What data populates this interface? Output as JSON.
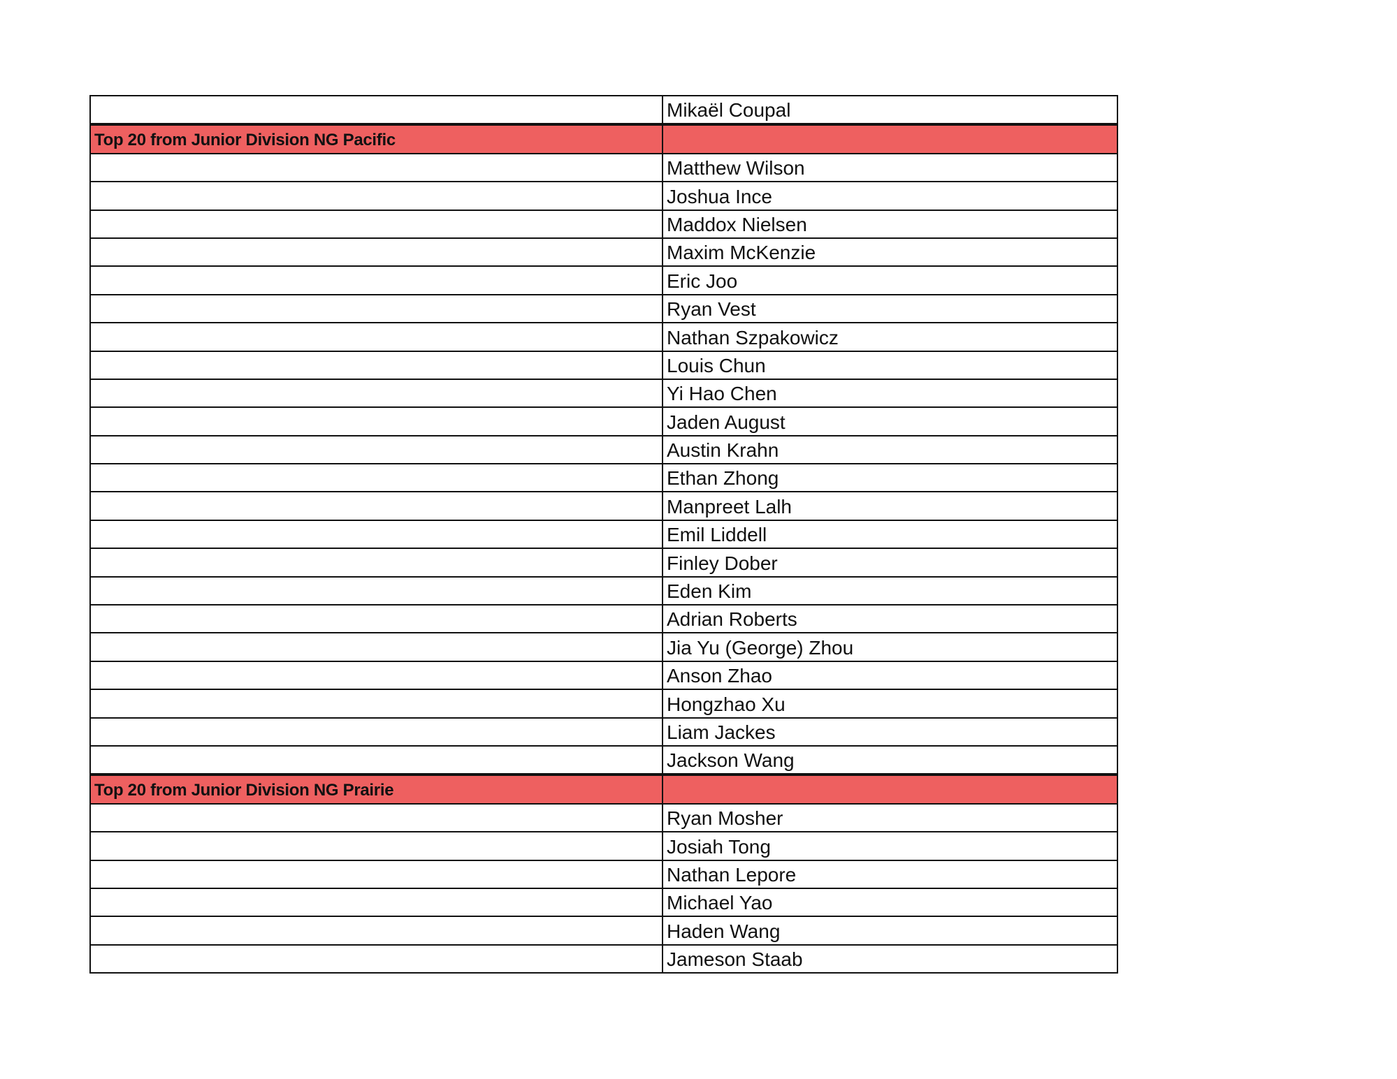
{
  "rows": [
    {
      "type": "name",
      "label": "",
      "name": "Mikaël Coupal"
    },
    {
      "type": "section",
      "label": "Top 20 from Junior Division NG Pacific",
      "name": ""
    },
    {
      "type": "name",
      "label": "",
      "name": "Matthew Wilson"
    },
    {
      "type": "name",
      "label": "",
      "name": "Joshua Ince"
    },
    {
      "type": "name",
      "label": "",
      "name": "Maddox Nielsen"
    },
    {
      "type": "name",
      "label": "",
      "name": "Maxim McKenzie"
    },
    {
      "type": "name",
      "label": "",
      "name": "Eric Joo"
    },
    {
      "type": "name",
      "label": "",
      "name": "Ryan Vest"
    },
    {
      "type": "name",
      "label": "",
      "name": "Nathan Szpakowicz"
    },
    {
      "type": "name",
      "label": "",
      "name": "Louis Chun"
    },
    {
      "type": "name",
      "label": "",
      "name": "Yi Hao Chen"
    },
    {
      "type": "name",
      "label": "",
      "name": "Jaden August"
    },
    {
      "type": "name",
      "label": "",
      "name": "Austin Krahn"
    },
    {
      "type": "name",
      "label": "",
      "name": "Ethan Zhong"
    },
    {
      "type": "name",
      "label": "",
      "name": "Manpreet Lalh"
    },
    {
      "type": "name",
      "label": "",
      "name": "Emil Liddell"
    },
    {
      "type": "name",
      "label": "",
      "name": "Finley Dober"
    },
    {
      "type": "name",
      "label": "",
      "name": "Eden Kim"
    },
    {
      "type": "name",
      "label": "",
      "name": "Adrian Roberts"
    },
    {
      "type": "name",
      "label": "",
      "name": "Jia Yu (George) Zhou"
    },
    {
      "type": "name",
      "label": "",
      "name": "Anson Zhao"
    },
    {
      "type": "name",
      "label": "",
      "name": "Hongzhao Xu"
    },
    {
      "type": "name",
      "label": "",
      "name": "Liam Jackes"
    },
    {
      "type": "name",
      "label": "",
      "name": "Jackson Wang"
    },
    {
      "type": "section",
      "label": "Top 20 from Junior Division NG Prairie",
      "name": ""
    },
    {
      "type": "name",
      "label": "",
      "name": "Ryan Mosher"
    },
    {
      "type": "name",
      "label": "",
      "name": "Josiah Tong"
    },
    {
      "type": "name",
      "label": "",
      "name": "Nathan Lepore"
    },
    {
      "type": "name",
      "label": "",
      "name": "Michael Yao"
    },
    {
      "type": "name",
      "label": "",
      "name": "Haden Wang"
    },
    {
      "type": "name",
      "label": "",
      "name": "Jameson Staab"
    }
  ],
  "colors": {
    "section_background": "#ee6060",
    "border": "#111111"
  }
}
